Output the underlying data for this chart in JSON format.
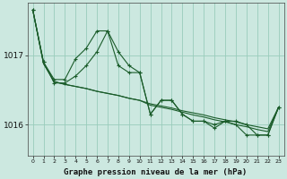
{
  "title": "Graphe pression niveau de la mer (hPa)",
  "background_color": "#cce8e0",
  "grid_color": "#99ccbb",
  "line_color": "#1a5c2a",
  "xlim": [
    -0.5,
    23.5
  ],
  "ylim": [
    1015.55,
    1017.75
  ],
  "yticks": [
    1016,
    1017
  ],
  "ytick_labels": [
    "1016",
    "1017"
  ],
  "xticks": [
    0,
    1,
    2,
    3,
    4,
    5,
    6,
    7,
    8,
    9,
    10,
    11,
    12,
    13,
    14,
    15,
    16,
    17,
    18,
    19,
    20,
    21,
    22,
    23
  ],
  "s1": [
    1017.65,
    1016.9,
    1016.6,
    1016.6,
    1016.7,
    1016.85,
    1017.05,
    1017.35,
    1017.05,
    1016.85,
    1016.75,
    1016.15,
    1016.35,
    1016.35,
    1016.15,
    1016.05,
    1016.05,
    1016.0,
    1016.05,
    1016.05,
    1016.0,
    1015.85,
    1015.85,
    1016.25
  ],
  "s2": [
    1017.65,
    1016.9,
    1016.65,
    1016.65,
    1016.95,
    1017.1,
    1017.35,
    1017.35,
    1016.85,
    1016.75,
    1016.75,
    1016.15,
    1016.35,
    1016.35,
    1016.15,
    1016.05,
    1016.05,
    1015.95,
    1016.05,
    1016.0,
    1015.85,
    1015.85,
    1015.85,
    1016.25
  ],
  "s3_x": [
    0,
    1,
    2,
    3,
    4,
    5,
    6,
    7,
    8,
    9,
    10,
    11,
    12,
    13,
    14,
    15,
    16,
    17,
    18,
    19,
    20,
    21,
    22,
    23
  ],
  "s3_y": [
    1017.65,
    1016.88,
    1016.62,
    1016.58,
    1016.55,
    1016.52,
    1016.48,
    1016.45,
    1016.42,
    1016.38,
    1016.35,
    1016.3,
    1016.27,
    1016.24,
    1016.2,
    1016.17,
    1016.14,
    1016.1,
    1016.07,
    1016.04,
    1016.0,
    1015.97,
    1015.94,
    1016.25
  ],
  "s4_x": [
    0,
    1,
    2,
    3,
    4,
    5,
    6,
    7,
    8,
    9,
    10,
    11,
    12,
    13,
    14,
    15,
    16,
    17,
    18,
    19,
    20,
    21,
    22,
    23
  ],
  "s4_y": [
    1017.65,
    1016.88,
    1016.62,
    1016.58,
    1016.55,
    1016.52,
    1016.48,
    1016.45,
    1016.42,
    1016.38,
    1016.35,
    1016.28,
    1016.25,
    1016.22,
    1016.18,
    1016.14,
    1016.11,
    1016.07,
    1016.04,
    1016.0,
    1015.97,
    1015.93,
    1015.9,
    1016.25
  ]
}
